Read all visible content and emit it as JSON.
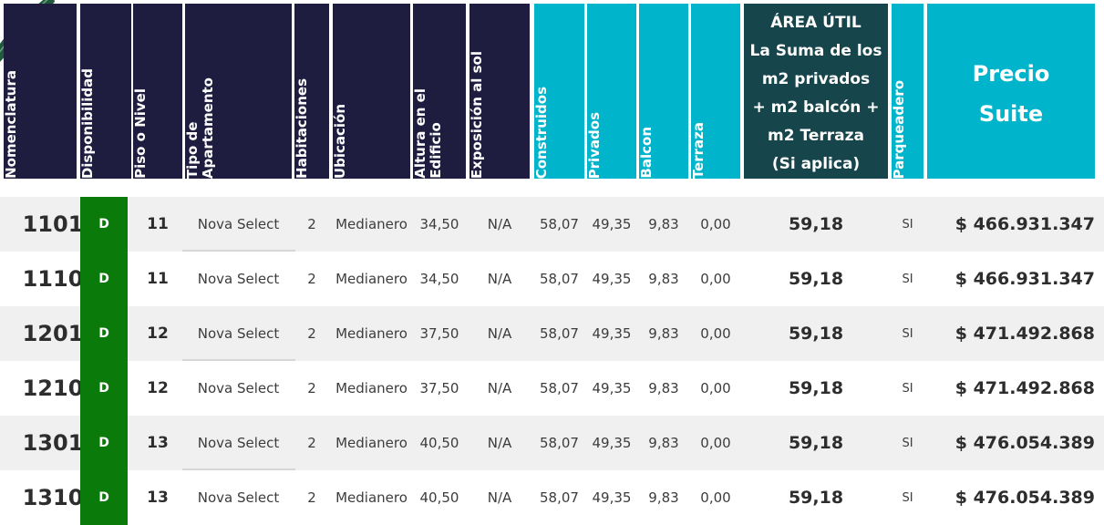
{
  "colors": {
    "navy": "#1f1d3f",
    "cyan": "#00b4cc",
    "teal": "#16454b",
    "available": "#0a7a0a"
  },
  "decoration": {
    "icon": "plant-leaf-icon"
  },
  "headers": [
    {
      "key": "nomenclatura",
      "label": "Nomenclatura",
      "style": "navy"
    },
    {
      "key": "disponibilidad",
      "label": "Disponibilidad",
      "style": "navy"
    },
    {
      "key": "piso",
      "label": "Piso o Nivel",
      "style": "navy"
    },
    {
      "key": "tipo",
      "label": "Tipo de\nApartamento",
      "style": "navy"
    },
    {
      "key": "habitaciones",
      "label": "Habitaciones",
      "style": "navy"
    },
    {
      "key": "ubicacion",
      "label": "Ubicación",
      "style": "navy"
    },
    {
      "key": "altura",
      "label": "Altura en el\nEdificio",
      "style": "navy"
    },
    {
      "key": "exposicion",
      "label": "Exposición al sol",
      "style": "navy"
    },
    {
      "key": "construidos",
      "label": "Construidos",
      "style": "cyan"
    },
    {
      "key": "privados",
      "label": "Privados",
      "style": "cyan"
    },
    {
      "key": "balcon",
      "label": "Balcon",
      "style": "cyan"
    },
    {
      "key": "terraza",
      "label": "Terraza",
      "style": "cyan"
    },
    {
      "key": "area_util",
      "label": "ÁREA ÚTIL\nLa Suma de los\nm2 privados\n+ m2 balcón +\nm2 Terraza\n(Si aplica)",
      "style": "teal"
    },
    {
      "key": "parqueadero",
      "label": "Parqueadero",
      "style": "cyan"
    },
    {
      "key": "precio",
      "label": "Precio\nSuite",
      "style": "cyan"
    }
  ],
  "rows": [
    {
      "nomenclatura": "1101",
      "disponibilidad": "D",
      "piso": "11",
      "tipo": "Nova Select",
      "habitaciones": "2",
      "ubicacion": "Medianero",
      "altura": "34,50",
      "exposicion": "N/A",
      "construidos": "58,07",
      "privados": "49,35",
      "balcon": "9,83",
      "terraza": "0,00",
      "area_util": "59,18",
      "parqueadero": "SI",
      "precio": "$ 466.931.347"
    },
    {
      "nomenclatura": "1110",
      "disponibilidad": "D",
      "piso": "11",
      "tipo": "Nova Select",
      "habitaciones": "2",
      "ubicacion": "Medianero",
      "altura": "34,50",
      "exposicion": "N/A",
      "construidos": "58,07",
      "privados": "49,35",
      "balcon": "9,83",
      "terraza": "0,00",
      "area_util": "59,18",
      "parqueadero": "SI",
      "precio": "$ 466.931.347"
    },
    {
      "nomenclatura": "1201",
      "disponibilidad": "D",
      "piso": "12",
      "tipo": "Nova Select",
      "habitaciones": "2",
      "ubicacion": "Medianero",
      "altura": "37,50",
      "exposicion": "N/A",
      "construidos": "58,07",
      "privados": "49,35",
      "balcon": "9,83",
      "terraza": "0,00",
      "area_util": "59,18",
      "parqueadero": "SI",
      "precio": "$ 471.492.868"
    },
    {
      "nomenclatura": "1210",
      "disponibilidad": "D",
      "piso": "12",
      "tipo": "Nova Select",
      "habitaciones": "2",
      "ubicacion": "Medianero",
      "altura": "37,50",
      "exposicion": "N/A",
      "construidos": "58,07",
      "privados": "49,35",
      "balcon": "9,83",
      "terraza": "0,00",
      "area_util": "59,18",
      "parqueadero": "SI",
      "precio": "$ 471.492.868"
    },
    {
      "nomenclatura": "1301",
      "disponibilidad": "D",
      "piso": "13",
      "tipo": "Nova Select",
      "habitaciones": "2",
      "ubicacion": "Medianero",
      "altura": "40,50",
      "exposicion": "N/A",
      "construidos": "58,07",
      "privados": "49,35",
      "balcon": "9,83",
      "terraza": "0,00",
      "area_util": "59,18",
      "parqueadero": "SI",
      "precio": "$ 476.054.389"
    },
    {
      "nomenclatura": "1310",
      "disponibilidad": "D",
      "piso": "13",
      "tipo": "Nova Select",
      "habitaciones": "2",
      "ubicacion": "Medianero",
      "altura": "40,50",
      "exposicion": "N/A",
      "construidos": "58,07",
      "privados": "49,35",
      "balcon": "9,83",
      "terraza": "0,00",
      "area_util": "59,18",
      "parqueadero": "SI",
      "precio": "$ 476.054.389"
    }
  ]
}
